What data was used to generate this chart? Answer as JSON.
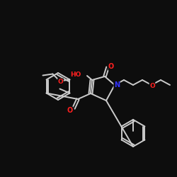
{
  "bg_color": "#0d0d0d",
  "bond_color": "#cccccc",
  "bond_width": 1.4,
  "atom_colors": {
    "O": "#ff2020",
    "N": "#3333ff",
    "C": "#cccccc"
  },
  "figsize": [
    2.5,
    2.5
  ],
  "dpi": 100
}
